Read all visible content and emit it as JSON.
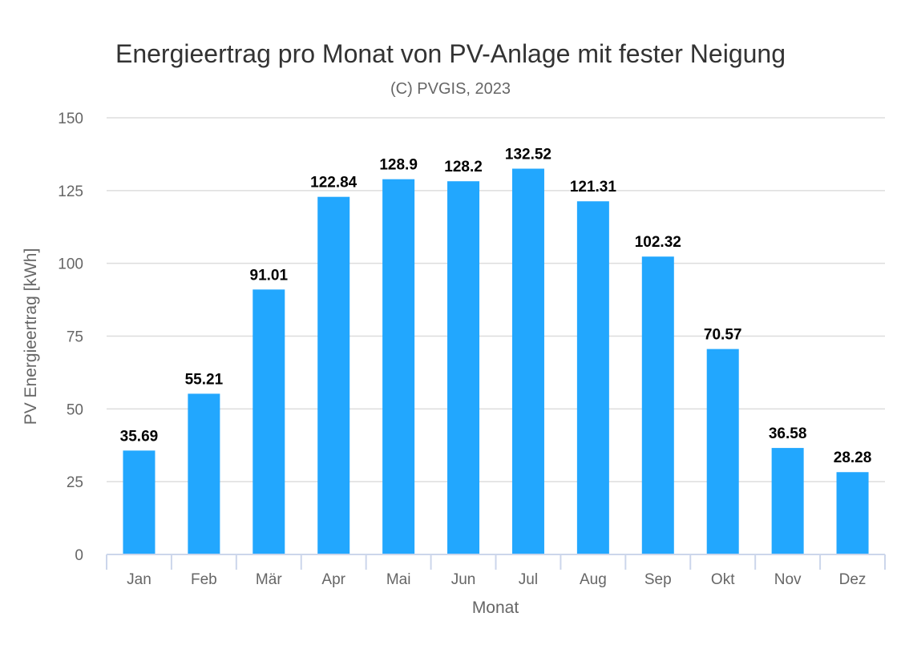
{
  "chart_data": {
    "type": "bar",
    "title": "Energieertrag pro Monat von PV-Anlage mit fester Neigung",
    "subtitle": "(C) PVGIS, 2023",
    "xlabel": "Monat",
    "ylabel": "PV Energieertrag [kWh]",
    "categories": [
      "Jan",
      "Feb",
      "Mär",
      "Apr",
      "Mai",
      "Jun",
      "Jul",
      "Aug",
      "Sep",
      "Okt",
      "Nov",
      "Dez"
    ],
    "values": [
      35.69,
      55.21,
      91.01,
      122.84,
      128.9,
      128.2,
      132.52,
      121.31,
      102.32,
      70.57,
      36.58,
      28.28
    ],
    "data_labels": [
      "35.69",
      "55.21",
      "91.01",
      "122.84",
      "128.9",
      "128.2",
      "132.52",
      "121.31",
      "102.32",
      "70.57",
      "36.58",
      "28.28"
    ],
    "ylim": [
      0,
      150
    ],
    "yticks": [
      0,
      25,
      50,
      75,
      100,
      125,
      150
    ],
    "grid": true,
    "legend": "none",
    "colors": {
      "bar": "#22a7fe",
      "grid": "#dddddd",
      "axis": "#ccd6eb"
    }
  }
}
